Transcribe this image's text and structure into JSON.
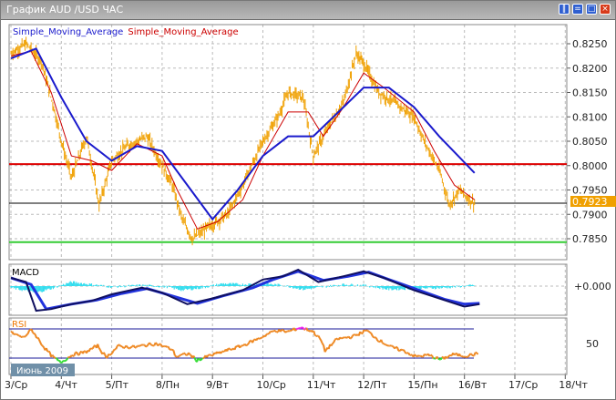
{
  "window": {
    "title": "График AUD /USD  ЧАС",
    "buttons": [
      "minimize",
      "restore",
      "maximize",
      "close"
    ]
  },
  "legend": {
    "sma1": "Simple_Moving_Average",
    "sma2": "Simple_Moving_Average",
    "sma1_color": "#1a1acc",
    "sma2_color": "#cc0000"
  },
  "chart_data": [
    {
      "type": "line",
      "title": "",
      "price_axis": {
        "ticks": [
          "0.8250",
          "0.8200",
          "0.8150",
          "0.8100",
          "0.8050",
          "0.8000",
          "0.7950",
          "0.7900",
          "0.7850"
        ],
        "range": [
          0.783,
          0.827
        ]
      },
      "x_ticks": [
        "3/Ср",
        "4/Чт",
        "5/Пт",
        "8/Пн",
        "9/Вт",
        "10/Ср",
        "11/Чт",
        "12/Пт",
        "15/Пн",
        "16/Вт",
        "17/Ср",
        "18/Чт"
      ],
      "current_price": "0.7923",
      "price_color": "#f0a000",
      "price": [
        [
          0,
          0.823
        ],
        [
          0.3,
          0.825
        ],
        [
          0.6,
          0.8215
        ],
        [
          0.85,
          0.812
        ],
        [
          1.0,
          0.805
        ],
        [
          1.2,
          0.7975
        ],
        [
          1.5,
          0.806
        ],
        [
          1.75,
          0.792
        ],
        [
          2.0,
          0.801
        ],
        [
          2.3,
          0.804
        ],
        [
          2.7,
          0.806
        ],
        [
          3.0,
          0.8
        ],
        [
          3.2,
          0.796
        ],
        [
          3.4,
          0.789
        ],
        [
          3.6,
          0.785
        ],
        [
          4.0,
          0.788
        ],
        [
          4.3,
          0.79
        ],
        [
          4.6,
          0.796
        ],
        [
          5.0,
          0.805
        ],
        [
          5.3,
          0.81
        ],
        [
          5.5,
          0.815
        ],
        [
          5.8,
          0.814
        ],
        [
          6.0,
          0.802
        ],
        [
          6.3,
          0.808
        ],
        [
          6.6,
          0.813
        ],
        [
          6.85,
          0.823
        ],
        [
          7.0,
          0.821
        ],
        [
          7.3,
          0.815
        ],
        [
          7.6,
          0.813
        ],
        [
          8.0,
          0.81
        ],
        [
          8.2,
          0.805
        ],
        [
          8.5,
          0.799
        ],
        [
          8.7,
          0.792
        ],
        [
          8.9,
          0.795
        ],
        [
          9.1,
          0.793
        ],
        [
          9.2,
          0.7923
        ]
      ],
      "sma_slow": [
        [
          0,
          0.822
        ],
        [
          0.5,
          0.824
        ],
        [
          1.0,
          0.814
        ],
        [
          1.5,
          0.805
        ],
        [
          2.0,
          0.801
        ],
        [
          2.5,
          0.804
        ],
        [
          3.0,
          0.803
        ],
        [
          3.5,
          0.796
        ],
        [
          4.0,
          0.789
        ],
        [
          4.5,
          0.795
        ],
        [
          5.0,
          0.802
        ],
        [
          5.5,
          0.806
        ],
        [
          6.0,
          0.806
        ],
        [
          6.5,
          0.811
        ],
        [
          7.0,
          0.816
        ],
        [
          7.5,
          0.816
        ],
        [
          8.0,
          0.812
        ],
        [
          8.5,
          0.806
        ],
        [
          9.2,
          0.7985
        ]
      ],
      "sma_fast": [
        [
          0,
          0.8225
        ],
        [
          0.4,
          0.8235
        ],
        [
          0.8,
          0.815
        ],
        [
          1.2,
          0.802
        ],
        [
          1.6,
          0.801
        ],
        [
          2.0,
          0.799
        ],
        [
          2.5,
          0.8045
        ],
        [
          3.0,
          0.802
        ],
        [
          3.3,
          0.795
        ],
        [
          3.7,
          0.787
        ],
        [
          4.1,
          0.7885
        ],
        [
          4.6,
          0.793
        ],
        [
          5.0,
          0.802
        ],
        [
          5.5,
          0.811
        ],
        [
          5.9,
          0.811
        ],
        [
          6.2,
          0.806
        ],
        [
          6.6,
          0.812
        ],
        [
          7.0,
          0.819
        ],
        [
          7.4,
          0.816
        ],
        [
          8.0,
          0.811
        ],
        [
          8.4,
          0.803
        ],
        [
          8.8,
          0.796
        ],
        [
          9.2,
          0.793
        ]
      ],
      "hlines": [
        {
          "value": 0.8003,
          "color": "#dd0000"
        },
        {
          "value": 0.7923,
          "color": "#000000"
        },
        {
          "value": 0.7843,
          "color": "#33cc33"
        }
      ]
    },
    {
      "type": "line",
      "title": "MACD",
      "zero_label": "+0.000",
      "range": [
        -0.004,
        0.0025
      ],
      "macd": [
        [
          0,
          0.001
        ],
        [
          0.3,
          0.0005
        ],
        [
          0.5,
          -0.003
        ],
        [
          0.8,
          -0.0028
        ],
        [
          1.2,
          -0.0022
        ],
        [
          1.6,
          -0.0018
        ],
        [
          2.0,
          -0.001
        ],
        [
          2.6,
          -0.0002
        ],
        [
          3.0,
          -0.0008
        ],
        [
          3.5,
          -0.0022
        ],
        [
          4.0,
          -0.0015
        ],
        [
          4.6,
          -0.0005
        ],
        [
          5.0,
          0.0008
        ],
        [
          5.4,
          0.0012
        ],
        [
          5.7,
          0.002
        ],
        [
          6.1,
          0.0005
        ],
        [
          6.6,
          0.0012
        ],
        [
          7.0,
          0.0018
        ],
        [
          7.4,
          0.001
        ],
        [
          8.0,
          -0.0005
        ],
        [
          8.5,
          -0.0015
        ],
        [
          9.0,
          -0.0025
        ],
        [
          9.3,
          -0.0022
        ]
      ],
      "signal": [
        [
          0,
          0.001
        ],
        [
          0.4,
          0.0002
        ],
        [
          0.7,
          -0.0028
        ],
        [
          1.2,
          -0.0022
        ],
        [
          1.7,
          -0.0017
        ],
        [
          2.2,
          -0.0009
        ],
        [
          2.7,
          -0.0003
        ],
        [
          3.2,
          -0.0012
        ],
        [
          3.7,
          -0.0021
        ],
        [
          4.2,
          -0.0012
        ],
        [
          4.8,
          -0.0002
        ],
        [
          5.2,
          0.0008
        ],
        [
          5.7,
          0.0018
        ],
        [
          6.2,
          0.0007
        ],
        [
          6.7,
          0.0012
        ],
        [
          7.1,
          0.0017
        ],
        [
          7.5,
          0.0008
        ],
        [
          8.1,
          -0.0005
        ],
        [
          8.6,
          -0.0016
        ],
        [
          9.0,
          -0.0022
        ],
        [
          9.3,
          -0.0021
        ]
      ],
      "histogram": [
        [
          0,
          -0.0002
        ],
        [
          0.5,
          -0.0008
        ],
        [
          0.8,
          -0.0003
        ],
        [
          1.2,
          0.0005
        ],
        [
          1.6,
          0.0002
        ],
        [
          2.0,
          -0.0001
        ],
        [
          2.6,
          0.0001
        ],
        [
          3.1,
          -0.0001
        ],
        [
          3.4,
          -0.0005
        ],
        [
          3.8,
          -0.0002
        ],
        [
          4.2,
          0.0003
        ],
        [
          4.6,
          0.0002
        ],
        [
          5.0,
          0.0003
        ],
        [
          5.4,
          0.0001
        ],
        [
          5.8,
          -0.0004
        ],
        [
          6.2,
          -0.0001
        ],
        [
          6.6,
          0.0002
        ],
        [
          7.0,
          0.0001
        ],
        [
          7.5,
          -0.0004
        ],
        [
          8.0,
          -0.0003
        ],
        [
          8.6,
          -0.0002
        ],
        [
          9.2,
          0.0001
        ]
      ]
    },
    {
      "type": "line",
      "title": "RSI",
      "tick_label": "50",
      "levels": [
        70,
        30
      ],
      "range": [
        15,
        88
      ],
      "rsi": [
        [
          0,
          65
        ],
        [
          0.3,
          58
        ],
        [
          0.5,
          69
        ],
        [
          0.8,
          45
        ],
        [
          1.0,
          32
        ],
        [
          1.2,
          24
        ],
        [
          1.5,
          35
        ],
        [
          1.8,
          38
        ],
        [
          2.1,
          47
        ],
        [
          2.3,
          31
        ],
        [
          2.6,
          46
        ],
        [
          3.0,
          45
        ],
        [
          3.5,
          50
        ],
        [
          3.9,
          42
        ],
        [
          4.0,
          32
        ],
        [
          4.3,
          36
        ],
        [
          4.5,
          27
        ],
        [
          4.8,
          33
        ],
        [
          5.2,
          40
        ],
        [
          5.6,
          47
        ],
        [
          6.0,
          57
        ],
        [
          6.4,
          68
        ],
        [
          6.7,
          66
        ],
        [
          7.0,
          72
        ],
        [
          7.3,
          67
        ],
        [
          7.5,
          55
        ],
        [
          7.6,
          40
        ],
        [
          7.9,
          56
        ],
        [
          8.3,
          60
        ],
        [
          8.6,
          68
        ],
        [
          8.9,
          55
        ],
        [
          9.2,
          45
        ],
        [
          9.5,
          40
        ],
        [
          9.8,
          32
        ],
        [
          10.1,
          34
        ],
        [
          10.4,
          28
        ],
        [
          10.7,
          35
        ],
        [
          11.0,
          33
        ],
        [
          11.3,
          36
        ]
      ]
    }
  ],
  "date_badge": "Июнь 2009"
}
